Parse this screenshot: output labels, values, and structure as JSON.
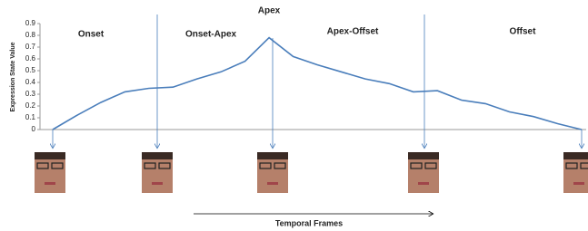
{
  "chart_data": {
    "type": "line",
    "y_label": "Expression State Value",
    "x_label": "Temporal Frames",
    "annotations": [
      "Onset",
      "Onset-Apex",
      "Apex",
      "Apex-Offset",
      "Offset"
    ],
    "categories": [
      null,
      null,
      null,
      null,
      null,
      null,
      null,
      null,
      null,
      null,
      null,
      null,
      null,
      null,
      null,
      null,
      null,
      null,
      null,
      null,
      null,
      null,
      null
    ],
    "series": [
      {
        "name": "Expression State Value",
        "color": "#4a7ebb",
        "values": [
          0,
          0.12,
          0.23,
          0.32,
          0.35,
          0.36,
          0.43,
          0.49,
          0.58,
          0.78,
          0.62,
          0.55,
          0.49,
          0.43,
          0.39,
          0.32,
          0.33,
          0.25,
          0.22,
          0.15,
          0.11,
          0.05,
          0
        ]
      }
    ],
    "ylim": [
      0,
      0.9
    ],
    "yticks": [
      0,
      0.1,
      0.2,
      0.3,
      0.4,
      0.5,
      0.6,
      0.7,
      0.8,
      0.9
    ],
    "grid": false
  }
}
